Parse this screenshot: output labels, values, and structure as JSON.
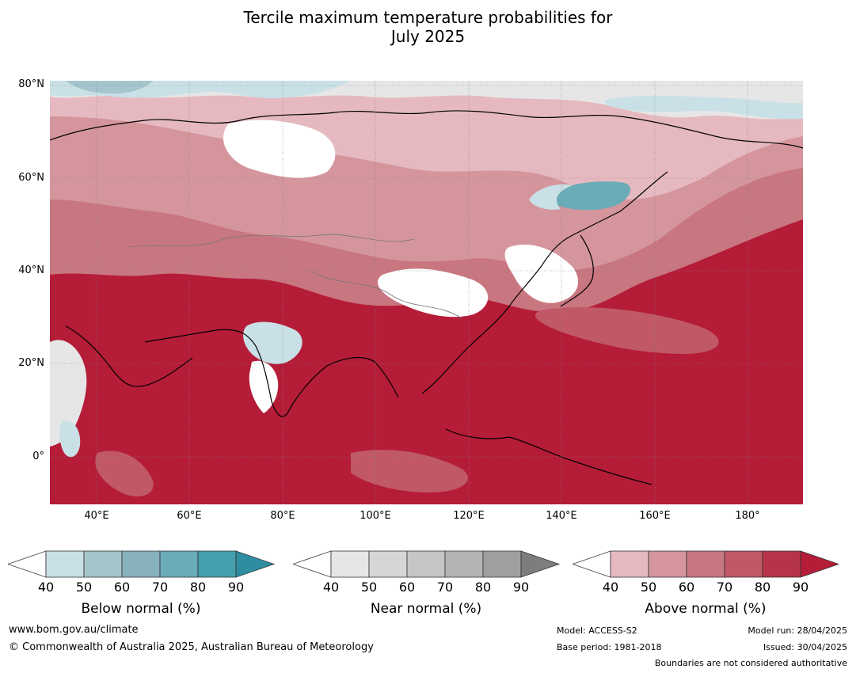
{
  "title": {
    "line1": "Tercile maximum temperature probabilities for",
    "line2": "July 2025"
  },
  "latitude_labels": [
    "80°N",
    "60°N",
    "40°N",
    "20°N",
    "0°"
  ],
  "longitude_labels": [
    "40°E",
    "60°E",
    "80°E",
    "100°E",
    "120°E",
    "140°E",
    "160°E",
    "180°"
  ],
  "map_extent": {
    "lon_min": 30,
    "lon_max": 192,
    "lat_min": -10,
    "lat_max": 81
  },
  "legends": [
    {
      "title": "Below normal (%)",
      "ticks": [
        "40",
        "50",
        "60",
        "70",
        "80",
        "90"
      ],
      "colors": [
        "#ffffff",
        "#c9e0e6",
        "#a5c5cc",
        "#87b2bd",
        "#6aacb7",
        "#469fae",
        "#2e8da0"
      ]
    },
    {
      "title": "Near normal (%)",
      "ticks": [
        "40",
        "50",
        "60",
        "70",
        "80",
        "90"
      ],
      "colors": [
        "#ffffff",
        "#e6e6e6",
        "#d6d6d6",
        "#c6c6c6",
        "#b4b4b4",
        "#a0a0a0",
        "#7d7d7d"
      ]
    },
    {
      "title": "Above normal (%)",
      "ticks": [
        "40",
        "50",
        "60",
        "70",
        "80",
        "90"
      ],
      "colors": [
        "#ffffff",
        "#e5b9bf",
        "#d5959d",
        "#c87680",
        "#c05866",
        "#b63449",
        "#b51c38"
      ]
    }
  ],
  "footer": {
    "website": "www.bom.gov.au/climate",
    "copyright": "© Commonwealth of Australia 2025, Australian Bureau of Meteorology",
    "model": "Model: ACCESS-S2",
    "base_period": "Base period: 1981-2018",
    "model_run": "Model run: 28/04/2025",
    "issued": "Issued: 30/04/2025",
    "disclaimer": "Boundaries are not considered authoritative"
  }
}
